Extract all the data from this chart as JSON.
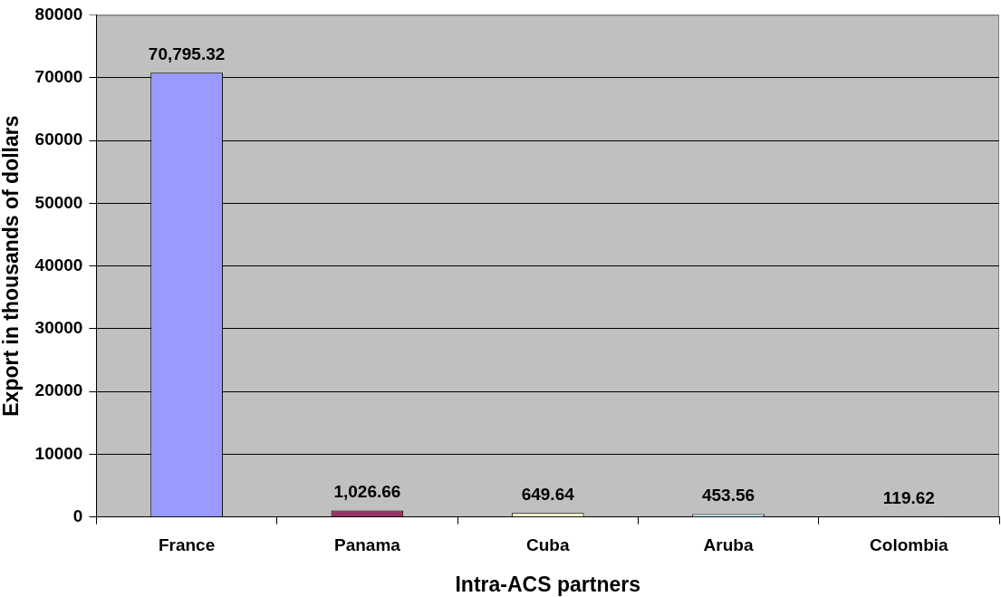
{
  "chart_data": {
    "type": "bar",
    "xlabel": "Intra-ACS partners",
    "ylabel": "Export in thousands of dollars",
    "categories": [
      "France",
      "Panama",
      "Cuba",
      "Aruba",
      "Colombia"
    ],
    "values": [
      70795.32,
      1026.66,
      649.64,
      453.56,
      119.62
    ],
    "colors": [
      "#9999ff",
      "#993366",
      "#ffffcc",
      "#ccffff",
      "#660066"
    ],
    "value_labels": [
      "70,795.32",
      "1,026.66",
      "649.64",
      "453.56",
      "119.62"
    ],
    "ylim": [
      0,
      80000
    ],
    "yticks": [
      0,
      10000,
      20000,
      30000,
      40000,
      50000,
      60000,
      70000,
      80000
    ],
    "grid": "y"
  }
}
